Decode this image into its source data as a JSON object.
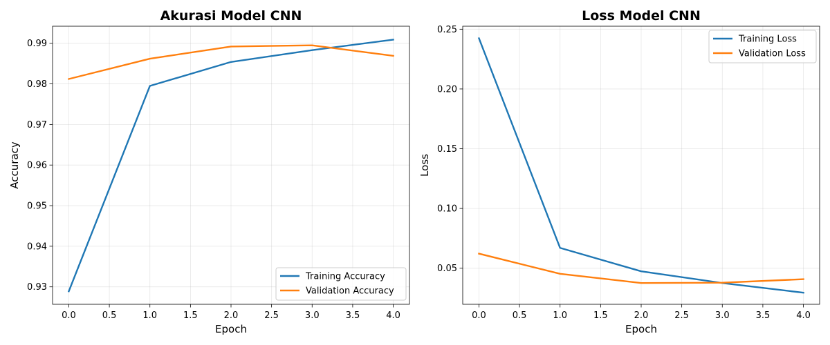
{
  "chart_data": [
    {
      "type": "line",
      "title": "Akurasi Model CNN",
      "xlabel": "Epoch",
      "ylabel": "Accuracy",
      "xlim": [
        -0.2,
        4.2
      ],
      "ylim": [
        0.9257,
        0.9942
      ],
      "xticks": [
        0.0,
        0.5,
        1.0,
        1.5,
        2.0,
        2.5,
        3.0,
        3.5,
        4.0
      ],
      "xtick_labels": [
        "0.0",
        "0.5",
        "1.0",
        "1.5",
        "2.0",
        "2.5",
        "3.0",
        "3.5",
        "4.0"
      ],
      "yticks": [
        0.93,
        0.94,
        0.95,
        0.96,
        0.97,
        0.98,
        0.99
      ],
      "ytick_labels": [
        "0.93",
        "0.94",
        "0.95",
        "0.96",
        "0.97",
        "0.98",
        "0.99"
      ],
      "grid": true,
      "legend_position": "lower-right",
      "x": [
        0,
        1,
        2,
        3,
        4
      ],
      "series": [
        {
          "name": "Training Accuracy",
          "color": "#1f77b4",
          "values": [
            0.9289,
            0.9795,
            0.9854,
            0.9883,
            0.9909
          ]
        },
        {
          "name": "Validation Accuracy",
          "color": "#ff7f0e",
          "values": [
            0.9812,
            0.9862,
            0.9892,
            0.9895,
            0.9869
          ]
        }
      ]
    },
    {
      "type": "line",
      "title": "Loss Model CNN",
      "xlabel": "Epoch",
      "ylabel": "Loss",
      "xlim": [
        -0.2,
        4.2
      ],
      "ylim": [
        0.0198,
        0.2525
      ],
      "xticks": [
        0.0,
        0.5,
        1.0,
        1.5,
        2.0,
        2.5,
        3.0,
        3.5,
        4.0
      ],
      "xtick_labels": [
        "0.0",
        "0.5",
        "1.0",
        "1.5",
        "2.0",
        "2.5",
        "3.0",
        "3.5",
        "4.0"
      ],
      "yticks": [
        0.05,
        0.1,
        0.15,
        0.2,
        0.25
      ],
      "ytick_labels": [
        "0.05",
        "0.10",
        "0.15",
        "0.20",
        "0.25"
      ],
      "grid": true,
      "legend_position": "top-right",
      "x": [
        0,
        1,
        2,
        3,
        4
      ],
      "series": [
        {
          "name": "Training Loss",
          "color": "#1f77b4",
          "values": [
            0.2424,
            0.067,
            0.0474,
            0.0376,
            0.0295
          ]
        },
        {
          "name": "Validation Loss",
          "color": "#ff7f0e",
          "values": [
            0.0622,
            0.0453,
            0.0376,
            0.0379,
            0.0408
          ]
        }
      ]
    }
  ]
}
